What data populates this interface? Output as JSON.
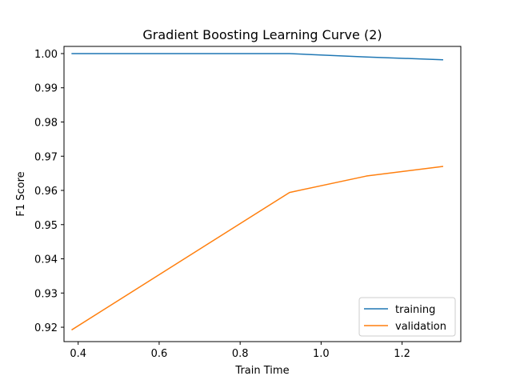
{
  "chart_data": {
    "type": "line",
    "title": "Gradient Boosting Learning Curve (2)",
    "xlabel": "Train Time",
    "ylabel": "F1 Score",
    "xlim": [
      0.365,
      1.345
    ],
    "ylim": [
      0.9158,
      1.0021
    ],
    "xticks": [
      0.4,
      0.6,
      0.8,
      1.0,
      1.2
    ],
    "xtick_labels": [
      "0.4",
      "0.6",
      "0.8",
      "1.0",
      "1.2"
    ],
    "yticks": [
      0.92,
      0.93,
      0.94,
      0.95,
      0.96,
      0.97,
      0.98,
      0.99,
      1.0
    ],
    "ytick_labels": [
      "0.92",
      "0.93",
      "0.94",
      "0.95",
      "0.96",
      "0.97",
      "0.98",
      "0.99",
      "1.00"
    ],
    "grid": false,
    "legend_position": "lower-right",
    "series": [
      {
        "name": "training",
        "color": "#1f77b4",
        "x": [
          0.385,
          0.922,
          1.112,
          1.3
        ],
        "y": [
          1.0,
          1.0,
          0.999,
          0.9982
        ]
      },
      {
        "name": "validation",
        "color": "#ff7f0e",
        "x": [
          0.385,
          0.922,
          1.112,
          1.3
        ],
        "y": [
          0.9193,
          0.9594,
          0.9642,
          0.967
        ]
      }
    ]
  }
}
